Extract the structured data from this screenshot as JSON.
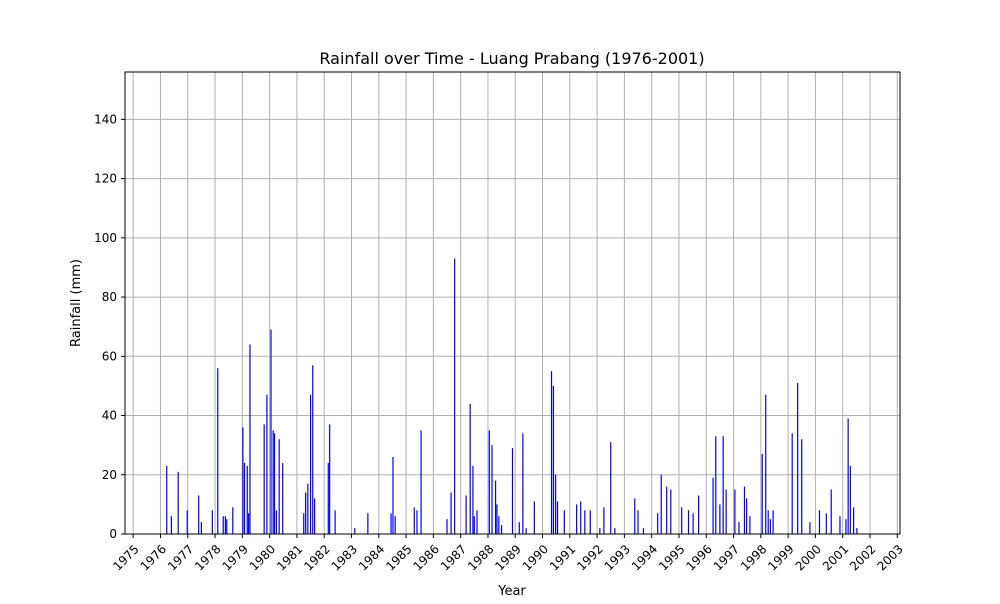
{
  "chart_data": {
    "type": "bar",
    "title": "Rainfall over Time - Luang Prabang (1976-2001)",
    "xlabel": "Year",
    "ylabel": "Rainfall (mm)",
    "xlim": [
      1974.7,
      2003.1
    ],
    "ylim": [
      0,
      156
    ],
    "xticks": [
      "1975",
      "1976",
      "1977",
      "1978",
      "1979",
      "1980",
      "1981",
      "1982",
      "1983",
      "1984",
      "1985",
      "1986",
      "1987",
      "1988",
      "1989",
      "1990",
      "1991",
      "1992",
      "1993",
      "1994",
      "1995",
      "1996",
      "1997",
      "1998",
      "1999",
      "2000",
      "2001",
      "2002",
      "2003"
    ],
    "yticks": [
      "0",
      "20",
      "40",
      "60",
      "80",
      "100",
      "120",
      "140"
    ],
    "grid": true,
    "bar_color": "#0000ff",
    "series": [
      {
        "x": [
          1976.23,
          1976.4,
          1976.65,
          1976.98,
          1977.4,
          1977.5,
          1977.9,
          1978.1,
          1978.3,
          1978.38,
          1978.43,
          1978.65,
          1979.02,
          1979.08,
          1979.18,
          1979.23,
          1979.28,
          1979.8,
          1979.9,
          1980.05,
          1980.13,
          1980.18,
          1980.25,
          1980.35,
          1980.48,
          1981.25,
          1981.32,
          1981.4,
          1981.5,
          1981.58,
          1981.65,
          1982.15,
          1982.2,
          1982.4,
          1983.12,
          1983.6,
          1984.45,
          1984.52,
          1984.6,
          1985.3,
          1985.4,
          1985.55,
          1986.5,
          1986.65,
          1986.78,
          1987.2,
          1987.35,
          1987.45,
          1987.5,
          1987.6,
          1988.05,
          1988.15,
          1988.28,
          1988.33,
          1988.4,
          1988.5,
          1988.9,
          1989.15,
          1989.28,
          1989.4,
          1989.7,
          1990.33,
          1990.4,
          1990.48,
          1990.55,
          1990.8,
          1991.25,
          1991.4,
          1991.55,
          1991.75,
          1992.1,
          1992.25,
          1992.5,
          1992.65,
          1993.38,
          1993.5,
          1993.7,
          1994.22,
          1994.35,
          1994.55,
          1994.7,
          1995.1,
          1995.35,
          1995.52,
          1995.72,
          1996.25,
          1996.35,
          1996.5,
          1996.62,
          1996.73,
          1997.05,
          1997.2,
          1997.4,
          1997.48,
          1997.6,
          1998.05,
          1998.18,
          1998.27,
          1998.35,
          1998.45,
          1999.15,
          1999.35,
          1999.5,
          1999.8,
          2000.15,
          2000.4,
          2000.58,
          2000.9,
          2001.12,
          2001.2,
          2001.28,
          2001.4,
          2001.52
        ],
        "values": [
          23,
          6,
          21,
          8,
          13,
          4,
          8,
          56,
          6,
          6,
          5,
          9,
          36,
          24,
          23,
          7,
          64,
          37,
          47,
          69,
          35,
          34,
          8,
          32,
          24,
          7,
          14,
          17,
          47,
          57,
          12,
          24,
          37,
          8,
          2,
          7,
          7,
          26,
          6,
          9,
          8,
          35,
          5,
          14,
          93,
          13,
          44,
          23,
          6,
          8,
          35,
          30,
          18,
          10,
          6,
          3,
          29,
          4,
          34,
          2,
          11,
          55,
          50,
          20,
          11,
          8,
          10,
          11,
          8,
          8,
          2,
          9,
          31,
          2,
          12,
          8,
          2,
          7,
          20,
          16,
          15,
          9,
          8,
          7,
          13,
          19,
          33,
          10,
          33,
          15,
          15,
          4,
          16,
          12,
          6,
          27,
          47,
          8,
          5,
          8,
          34,
          51,
          32,
          4,
          8,
          7,
          15,
          6,
          5,
          39,
          23,
          9,
          2
        ]
      }
    ]
  }
}
